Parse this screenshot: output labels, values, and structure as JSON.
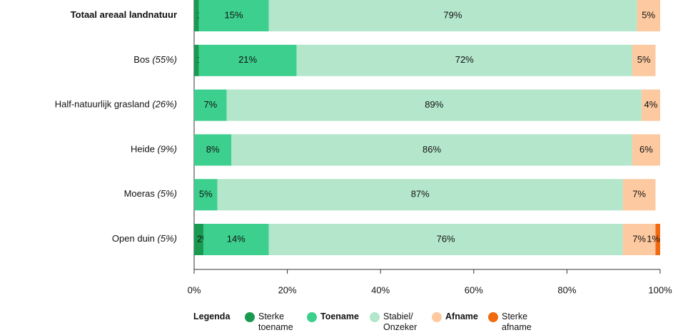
{
  "chart_data": {
    "type": "stacked-bar-horizontal",
    "categories": [
      "Totaal areaal landnatuur",
      "Bos",
      "Half-natuurlijk grasland",
      "Heide",
      "Moeras",
      "Open duin"
    ],
    "shares": [
      null,
      "(55%)",
      "(26%)",
      "(9%)",
      "(5%)",
      "(5%)"
    ],
    "series": [
      {
        "name": "Sterke toename",
        "color": "#1a9a50",
        "values": [
          1,
          1,
          0,
          0,
          0,
          2
        ],
        "value_labels": [
          "1%",
          "1%",
          null,
          null,
          null,
          "2%"
        ]
      },
      {
        "name": "Toename",
        "color": "#3ccf8e",
        "values": [
          15,
          21,
          7,
          8,
          5,
          14
        ],
        "value_labels": [
          "15%",
          "21%",
          "7%",
          "8%",
          "5%",
          "14%"
        ]
      },
      {
        "name": "Stabiel/ Onzeker",
        "color": "#b3e6cb",
        "values": [
          79,
          72,
          89,
          86,
          87,
          76
        ],
        "value_labels": [
          "79%",
          "72%",
          "89%",
          "86%",
          "87%",
          "76%"
        ]
      },
      {
        "name": "Afname",
        "color": "#fcc9a0",
        "values": [
          5,
          5,
          4,
          6,
          7,
          7
        ],
        "value_labels": [
          "5%",
          "5%",
          "4%",
          "6%",
          "7%",
          "7%"
        ]
      },
      {
        "name": "Sterke afname",
        "color": "#f26a10",
        "values": [
          0,
          0,
          0,
          0,
          0,
          1
        ],
        "value_labels": [
          null,
          null,
          null,
          null,
          null,
          "1%"
        ]
      }
    ],
    "xlim": [
      0,
      100
    ],
    "xticks": [
      {
        "value": 0,
        "label": "0%"
      },
      {
        "value": 20,
        "label": "20%"
      },
      {
        "value": 40,
        "label": "40%"
      },
      {
        "value": 60,
        "label": "60%"
      },
      {
        "value": 80,
        "label": "80%"
      },
      {
        "value": 100,
        "label": "100%"
      }
    ],
    "legend_title": "Legenda"
  }
}
